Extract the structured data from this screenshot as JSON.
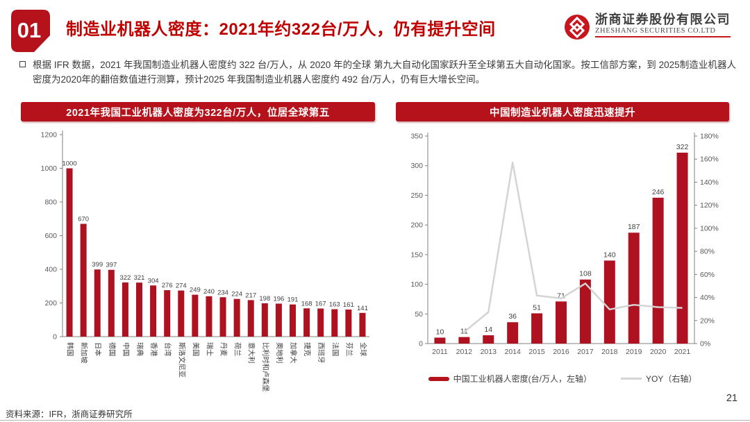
{
  "header": {
    "badge": "01",
    "title": "制造业机器人密度：2021年约322台/万人，仍有提升空间",
    "logo_cn": "浙商证券股份有限公司",
    "logo_en": "ZHESHANG SECURITIES CO.LTD"
  },
  "intro": {
    "text": "根据 IFR 数据，2021 年我国制造业机器人密度约 322 台/万人，从 2020 年的全球 第九大自动化国家跃升至全球第五大自动化国家。按工信部方案，到 2025制造业机器人密度为2020年的翻倍数值进行测算，预计2025 年我国制造业机器人密度约 492 台/万人，仍有巨大增长空间。"
  },
  "colors": {
    "accent_red": "#b5121b",
    "bar_red": "#ae1220",
    "title_red": "#c00000",
    "yoy_line_gray": "#d4d4d4",
    "axis_gray": "#808080",
    "label_gray": "#404040",
    "logo_red": "#c8161e"
  },
  "chart_data": [
    {
      "type": "bar",
      "title": "2021年我国工业机器人密度为322台/万人，位居全球第五",
      "categories": [
        "韩国",
        "新加坡",
        "日本",
        "德国",
        "中国",
        "瑞典",
        "香港",
        "台湾",
        "斯洛文尼亚",
        "美国",
        "瑞士",
        "丹麦",
        "荷兰",
        "意大利",
        "比利时和卢森堡",
        "奥地利",
        "加拿大",
        "捷克",
        "西班牙",
        "法国",
        "芬兰",
        "全球"
      ],
      "values": [
        1000,
        670,
        399,
        397,
        322,
        321,
        304,
        276,
        274,
        249,
        240,
        234,
        224,
        217,
        198,
        196,
        191,
        168,
        167,
        163,
        161,
        141
      ],
      "xlabel": "",
      "ylabel": "",
      "ylim": [
        0,
        1200
      ],
      "ytick_step": 200,
      "grid": false,
      "legend_position": "none"
    },
    {
      "type": "bar+line",
      "title": "中国制造业机器人密度迅速提升",
      "categories": [
        "2011",
        "2012",
        "2013",
        "2014",
        "2015",
        "2016",
        "2017",
        "2018",
        "2019",
        "2020",
        "2021"
      ],
      "series": [
        {
          "name": "中国工业机器人密度(台/万人，左轴）",
          "type": "bar",
          "axis": "left",
          "values": [
            10,
            11,
            14,
            36,
            51,
            71,
            108,
            140,
            187,
            246,
            322
          ]
        },
        {
          "name": "YOY（右轴）",
          "type": "line",
          "axis": "right",
          "values": [
            null,
            10.0,
            27.3,
            157.1,
            41.7,
            39.2,
            52.1,
            29.6,
            33.6,
            31.6,
            30.9
          ]
        }
      ],
      "xlabel": "",
      "left_ylim": [
        0,
        350
      ],
      "left_tick_step": 50,
      "right_ylim": [
        0,
        180
      ],
      "right_tick_step": 20,
      "right_tick_suffix": "%",
      "grid": false,
      "legend_position": "bottom"
    }
  ],
  "footer": {
    "source": "资料来源：IFR，浙商证券研究所",
    "page": "21"
  }
}
